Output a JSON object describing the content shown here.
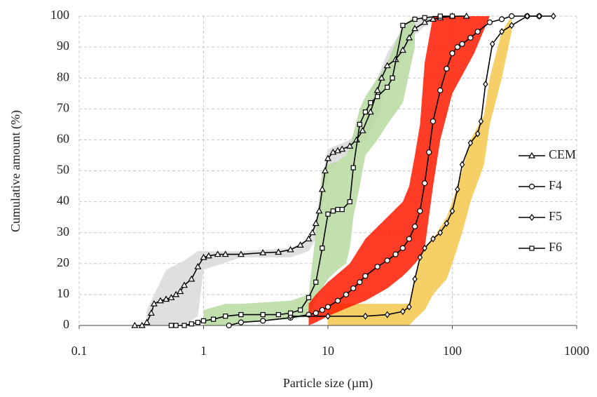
{
  "chart_data": {
    "type": "line",
    "xlabel": "Particle size (µm)",
    "ylabel": "Cumulative amount (%)",
    "xscale": "log",
    "xlim": [
      0.1,
      1000
    ],
    "xticks": [
      0.1,
      1,
      10,
      100,
      1000
    ],
    "ylim": [
      0,
      100
    ],
    "yticks": [
      0,
      10,
      20,
      30,
      40,
      50,
      60,
      70,
      80,
      90,
      100
    ],
    "grid": true,
    "legend": "right",
    "bands": [
      {
        "color": "#d9d9d9",
        "x": [
          0.35,
          0.5,
          0.7,
          0.9,
          1,
          2,
          5,
          7,
          8,
          9,
          10,
          15,
          20,
          25,
          30,
          40,
          50,
          70
        ],
        "upper": [
          5,
          18,
          21,
          24,
          24,
          24,
          25,
          28,
          34,
          48,
          57,
          60,
          66,
          80,
          88,
          96,
          99,
          100
        ],
        "lower": [
          0,
          0,
          0,
          3,
          18,
          22,
          22,
          24,
          28,
          38,
          50,
          56,
          60,
          68,
          78,
          86,
          94,
          99
        ]
      },
      {
        "color": "#b7d9a0",
        "x": [
          1,
          1.5,
          2,
          5,
          7,
          8,
          9,
          10,
          12,
          14,
          15,
          16,
          18,
          20,
          25,
          30,
          40,
          50
        ],
        "upper": [
          5,
          7,
          7,
          8,
          10,
          30,
          50,
          52,
          53,
          55,
          58,
          62,
          70,
          74,
          80,
          85,
          97,
          100
        ],
        "lower": [
          0,
          0,
          1,
          2,
          3,
          8,
          12,
          15,
          18,
          20,
          25,
          35,
          45,
          55,
          60,
          65,
          72,
          90
        ]
      },
      {
        "color": "#f5c84c",
        "x": [
          10,
          30,
          45,
          50,
          60,
          70,
          90,
          100,
          120,
          140,
          180,
          200,
          250,
          300
        ],
        "upper": [
          7,
          7,
          7,
          16,
          25,
          28,
          35,
          40,
          50,
          60,
          68,
          80,
          95,
          100
        ],
        "lower": [
          0,
          0,
          0,
          2,
          5,
          10,
          15,
          20,
          30,
          40,
          52,
          65,
          80,
          95
        ]
      },
      {
        "color": "#ff1a00",
        "x": [
          7,
          8,
          10,
          15,
          20,
          30,
          40,
          45,
          50,
          55,
          60,
          70,
          80,
          100,
          150,
          200
        ],
        "upper": [
          7,
          10,
          14,
          20,
          28,
          35,
          40,
          45,
          55,
          65,
          85,
          100,
          100,
          100,
          100,
          100
        ],
        "lower": [
          0,
          1,
          3,
          6,
          8,
          12,
          16,
          18,
          20,
          22,
          25,
          45,
          60,
          75,
          88,
          100
        ]
      }
    ],
    "series": [
      {
        "name": "CEM",
        "color": "#000000",
        "marker": "triangle",
        "x": [
          0.28,
          0.32,
          0.35,
          0.38,
          0.4,
          0.45,
          0.5,
          0.55,
          0.6,
          0.65,
          0.7,
          0.8,
          0.9,
          1,
          1.1,
          1.3,
          1.5,
          2,
          3,
          4,
          5,
          6,
          7,
          7.5,
          8,
          8.5,
          9,
          9.5,
          10,
          11,
          12,
          13,
          15,
          17,
          19,
          22,
          25,
          27,
          30,
          35,
          40,
          45,
          50,
          60,
          70,
          80,
          100,
          130
        ],
        "values": [
          0,
          0,
          1,
          4,
          7,
          8,
          8.5,
          9,
          10,
          11,
          13,
          15,
          19,
          22,
          22.5,
          23,
          23,
          23,
          23.5,
          23.7,
          24.5,
          26,
          28,
          30,
          33,
          37,
          44,
          50,
          54,
          56,
          56.5,
          57,
          58,
          60,
          63,
          69,
          76,
          80,
          84,
          86,
          89,
          93,
          96,
          98,
          99,
          99.5,
          100,
          100
        ]
      },
      {
        "name": "F4",
        "color": "#000000",
        "marker": "circle",
        "x": [
          1.6,
          2,
          3,
          5,
          7,
          8,
          9,
          10,
          12,
          14,
          16,
          18,
          20,
          25,
          30,
          35,
          40,
          45,
          50,
          55,
          60,
          65,
          70,
          80,
          90,
          100,
          110,
          120,
          140,
          160,
          200,
          250,
          300,
          400,
          500
        ],
        "values": [
          0,
          1,
          1.5,
          2.5,
          3.5,
          4,
          5,
          6,
          8,
          10,
          12,
          14,
          16,
          19,
          21,
          23,
          25,
          28,
          32,
          37,
          46,
          56,
          66,
          76,
          83,
          88,
          90,
          91,
          93,
          95,
          98,
          99,
          100,
          100,
          100
        ]
      },
      {
        "name": "F5",
        "color": "#000000",
        "marker": "diamond",
        "x": [
          5,
          10,
          20,
          30,
          40,
          45,
          50,
          55,
          60,
          70,
          80,
          90,
          100,
          110,
          120,
          140,
          160,
          170,
          185,
          210,
          250,
          300,
          400,
          500,
          650
        ],
        "values": [
          3,
          3,
          3,
          3.5,
          4.5,
          6,
          15,
          22,
          25,
          28,
          30,
          33,
          37,
          44,
          52,
          59,
          62,
          66,
          78,
          91,
          95,
          97,
          100,
          100,
          100
        ]
      },
      {
        "name": "F6",
        "color": "#000000",
        "marker": "square",
        "x": [
          0.55,
          0.6,
          0.7,
          0.8,
          0.9,
          1,
          1.2,
          1.5,
          2,
          3,
          4,
          5,
          6,
          7,
          8,
          9,
          10,
          11,
          12,
          13,
          15,
          16,
          18,
          20,
          22,
          25,
          30,
          33,
          40,
          50,
          60,
          80,
          100
        ],
        "values": [
          0,
          0,
          0,
          0.5,
          1,
          1.5,
          2,
          3,
          3.5,
          3.5,
          3.5,
          4,
          5,
          9,
          14,
          25,
          36,
          37,
          37.5,
          37.5,
          40,
          51,
          65,
          69,
          72,
          74,
          77,
          80,
          97,
          99,
          99.5,
          100,
          100
        ]
      }
    ]
  }
}
